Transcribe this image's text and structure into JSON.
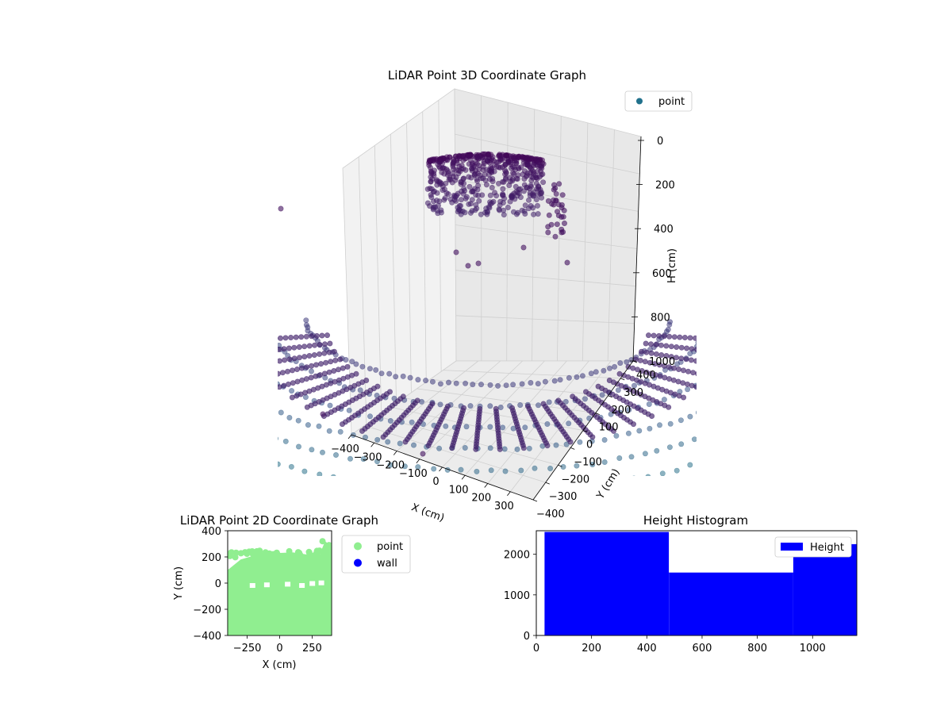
{
  "chart_data": [
    {
      "type": "scatter",
      "projection": "3d",
      "title": "LiDAR Point 3D Coordinate Graph",
      "xlabel": "X (cm)",
      "ylabel": "Y (cm)",
      "zlabel": "H (cm)",
      "xlim": [
        -400,
        400
      ],
      "ylim": [
        -400,
        400
      ],
      "zlim": [
        0,
        1000
      ],
      "z_inverted": true,
      "x_ticks": [
        "−400",
        "−300",
        "−200",
        "−100",
        "0",
        "100",
        "200",
        "300"
      ],
      "y_ticks": [
        "−400",
        "−300",
        "−200",
        "−100",
        "0",
        "100",
        "200",
        "300",
        "400"
      ],
      "z_ticks": [
        "0",
        "200",
        "400",
        "600",
        "800",
        "1000"
      ],
      "legend": {
        "placement": "upper-right",
        "entries": [
          {
            "label": "point",
            "color": "#21718c"
          }
        ]
      },
      "colormap": "viridis",
      "grid": true,
      "series": [
        {
          "name": "point",
          "description_clusters": [
            {
              "label": "ceiling-block",
              "x": [
                -230,
                80
              ],
              "y": [
                180,
                260
              ],
              "h": [
                80,
                330
              ]
            },
            {
              "label": "floor-bowl",
              "x": [
                -400,
                400
              ],
              "y": [
                -400,
                400
              ],
              "h": [
                700,
                1000
              ]
            }
          ]
        }
      ]
    },
    {
      "type": "scatter",
      "title": "LiDAR Point 2D Coordinate Graph",
      "xlabel": "X (cm)",
      "ylabel": "Y (cm)",
      "xlim": [
        -400,
        400
      ],
      "ylim": [
        -400,
        400
      ],
      "x_ticks": [
        -250,
        0,
        250
      ],
      "y_ticks": [
        -400,
        -200,
        0,
        200,
        400
      ],
      "legend": {
        "placement": "outside-right",
        "entries": [
          {
            "label": "point",
            "color": "#90ee90"
          },
          {
            "label": "wall",
            "color": "#0000ff"
          }
        ]
      },
      "series": [
        {
          "name": "point",
          "color": "#90ee90",
          "region": {
            "x": [
              -400,
              400
            ],
            "y_top_profile": [
              [
                -400,
                100
              ],
              [
                -300,
                180
              ],
              [
                -200,
                210
              ],
              [
                -100,
                220
              ],
              [
                0,
                230
              ],
              [
                100,
                235
              ],
              [
                200,
                220
              ],
              [
                300,
                200
              ],
              [
                350,
                320
              ],
              [
                400,
                280
              ]
            ],
            "y_bottom": -400
          }
        },
        {
          "name": "wall",
          "color": "#0000ff",
          "points": []
        }
      ]
    },
    {
      "type": "bar",
      "title": "Height Histogram",
      "xlabel": "",
      "ylabel": "",
      "xlim": [
        0,
        1160
      ],
      "ylim": [
        0,
        2580
      ],
      "x_ticks": [
        0,
        200,
        400,
        600,
        800,
        1000
      ],
      "y_ticks": [
        0,
        1000,
        2000
      ],
      "legend": {
        "placement": "upper-right",
        "entries": [
          {
            "label": "Height",
            "color": "#0000ff"
          }
        ]
      },
      "bins": [
        {
          "x0": 30,
          "x1": 480,
          "value": 2550
        },
        {
          "x0": 480,
          "x1": 930,
          "value": 1550
        },
        {
          "x0": 930,
          "x1": 1160,
          "value": 2250
        }
      ],
      "series": [
        {
          "name": "Height",
          "color": "#0000ff"
        }
      ]
    }
  ]
}
